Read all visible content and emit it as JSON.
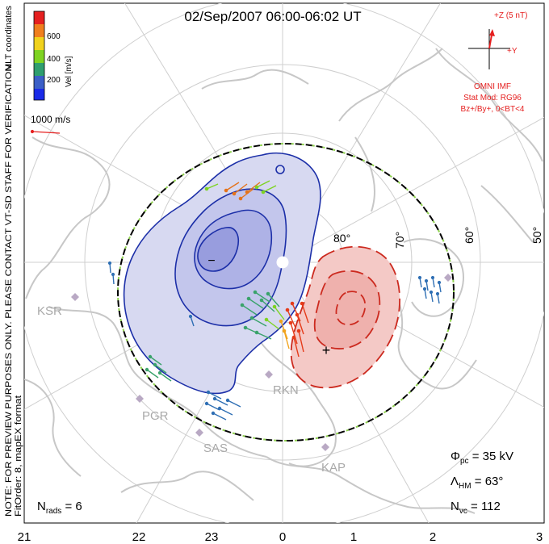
{
  "title": "02/Sep/2007 06:00-06:02 UT",
  "colorbar": {
    "unit_label": "Vel [m/s]",
    "ticks": [
      "600",
      "400",
      "200"
    ],
    "colors": [
      "#e52020",
      "#f07f1e",
      "#f1d21d",
      "#7ed322",
      "#2f9e6f",
      "#3b5fc7",
      "#1a2be8"
    ]
  },
  "side_notes": {
    "coords": "MLT coordinates",
    "preview": "NOTE: FOR PREVIEW PURPOSES ONLY. PLEASE CONTACT VT-SD STAFF FOR VERIFICATION.",
    "fit": "FitOrder: 8, mapEX format"
  },
  "velocity_scale": "1000 m/s",
  "imf": {
    "z_label": "+Z (5 nT)",
    "y_label": "+Y",
    "title": "OMNI IMF",
    "model": "Stat Mod: RG96",
    "condition": "Bz+/By+, 0<BT<4"
  },
  "latitude_labels": [
    "80°",
    "70°",
    "60°",
    "50°"
  ],
  "stations": [
    "KSR",
    "PGR",
    "SAS",
    "RKN",
    "KAP"
  ],
  "extrema": {
    "min": "−",
    "max": "+"
  },
  "stats": {
    "phi_pc": "35 kV",
    "lambda_hm": "63°",
    "n_vc": "112",
    "n_rads": "6"
  },
  "mlt_ticks": [
    "21",
    "22",
    "23",
    "0",
    "1",
    "2",
    "3"
  ],
  "colors": {
    "negative": "#1c2fa8",
    "negative_fill": "#b8bde8",
    "positive": "#cc2a1f",
    "positive_fill": "#f4c9c6",
    "land": "#c7c7c7",
    "grid": "#cfcfcf",
    "hmb_dash": "#8fd14f"
  }
}
